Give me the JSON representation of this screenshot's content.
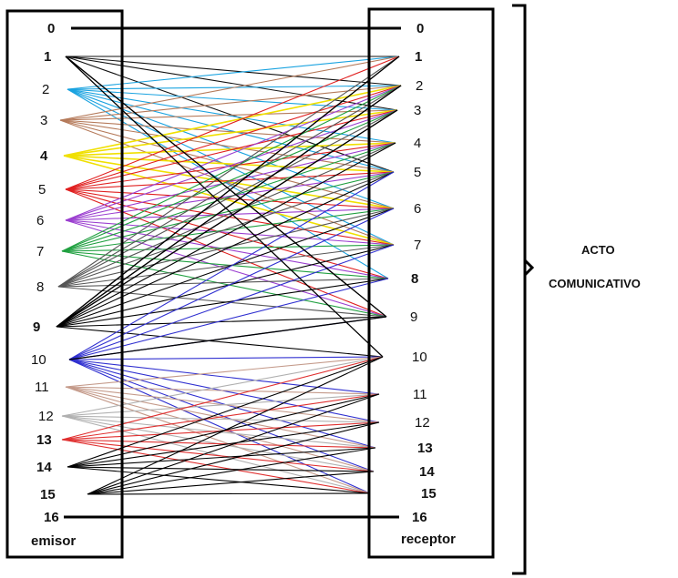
{
  "left_nodes": [
    "0",
    "1",
    "2",
    "3",
    "4",
    "5",
    "6",
    "7",
    "8",
    "9",
    "10",
    "11",
    "12",
    "13",
    "14",
    "15",
    "16"
  ],
  "right_nodes": [
    "0",
    "1",
    "2",
    "3",
    "4",
    "5",
    "6",
    "7",
    "8",
    "9",
    "10",
    "11",
    "12",
    "13",
    "14",
    "15",
    "16"
  ],
  "left_caption": "emisor",
  "right_caption": "receptor",
  "bracket_label_line1": "ACTO",
  "bracket_label_line2": "COMUNICATIVO",
  "colors": {
    "frame": "#000000",
    "group1": "#111111",
    "group2": "#1aa3e0",
    "group3": "#b57a5a",
    "group4": "#f0e000",
    "group5": "#e02020",
    "group6": "#9b3fd0",
    "group7": "#20a040",
    "group8": "#555555",
    "group9": "#000000",
    "group10": "#3030d0",
    "group11": "#c49a8a",
    "group12": "#b0b0b0",
    "group13": "#e03030",
    "group14": "#000000",
    "group15": "#000000"
  }
}
